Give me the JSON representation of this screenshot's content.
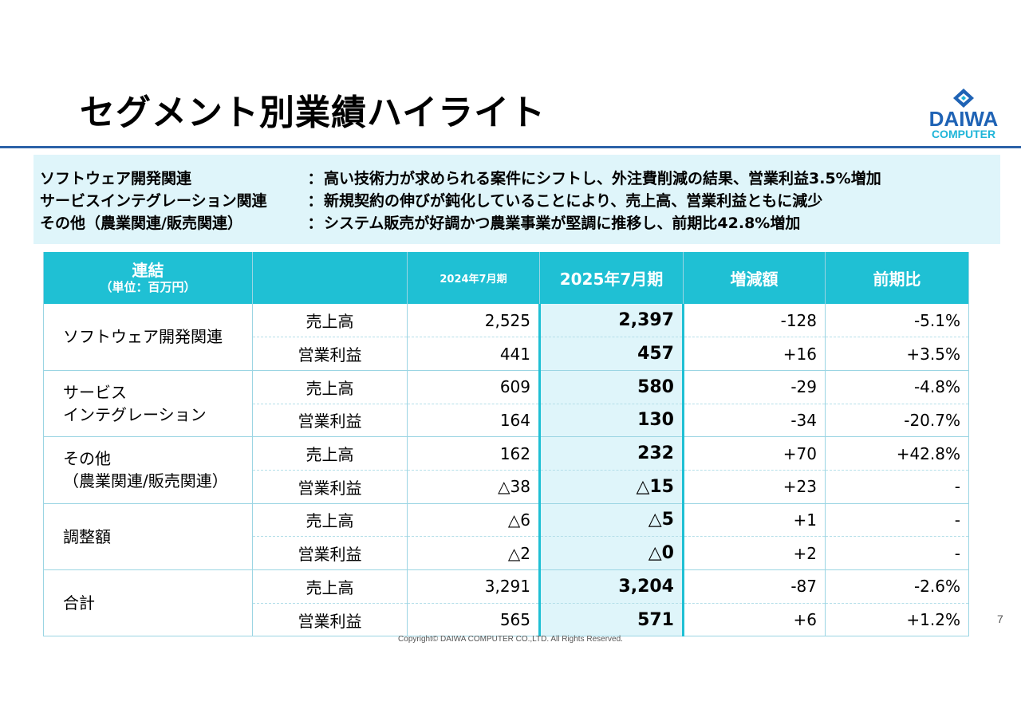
{
  "title": "セグメント別業績ハイライト",
  "logo": {
    "word": "DAIWA",
    "sub": "COMPUTER"
  },
  "summary": [
    {
      "label": "ソフトウェア開発関連",
      "colon": "：",
      "text": "高い技術力が求められる案件にシフトし、外注費削減の結果、営業利益3.5%増加"
    },
    {
      "label": "サービスインテグレーション関連",
      "colon": "：",
      "text": "新規契約の伸びが鈍化していることにより、売上高、営業利益ともに減少"
    },
    {
      "label": "その他（農業関連/販売関連）",
      "colon": "：",
      "text": "システム販売が好調かつ農業事業が堅調に推移し、前期比42.8%増加"
    }
  ],
  "table": {
    "header": {
      "consolidated": "連結",
      "unit": "（単位：百万円）",
      "blank": "",
      "prev": "2024年7月期",
      "cur": "2025年7月期",
      "diff": "増減額",
      "ratio": "前期比"
    },
    "segments": [
      {
        "name_line1": "ソフトウェア開発関連",
        "name_line2": "",
        "rows": [
          {
            "item": "売上高",
            "prev": "2,525",
            "cur": "2,397",
            "diff": "-128",
            "ratio": "-5.1%"
          },
          {
            "item": "営業利益",
            "prev": "441",
            "cur": "457",
            "diff": "+16",
            "ratio": "+3.5%"
          }
        ]
      },
      {
        "name_line1": "サービス",
        "name_line2": "インテグレーション",
        "rows": [
          {
            "item": "売上高",
            "prev": "609",
            "cur": "580",
            "diff": "-29",
            "ratio": "-4.8%"
          },
          {
            "item": "営業利益",
            "prev": "164",
            "cur": "130",
            "diff": "-34",
            "ratio": "-20.7%"
          }
        ]
      },
      {
        "name_line1": "その他",
        "name_line2": "（農業関連/販売関連）",
        "rows": [
          {
            "item": "売上高",
            "prev": "162",
            "cur": "232",
            "diff": "+70",
            "ratio": "+42.8%"
          },
          {
            "item": "営業利益",
            "prev": "△38",
            "cur": "△15",
            "diff": "+23",
            "ratio": "-"
          }
        ]
      },
      {
        "name_line1": "調整額",
        "name_line2": "",
        "rows": [
          {
            "item": "売上高",
            "prev": "△6",
            "cur": "△5",
            "diff": "+1",
            "ratio": "-"
          },
          {
            "item": "営業利益",
            "prev": "△2",
            "cur": "△0",
            "diff": "+2",
            "ratio": "-"
          }
        ]
      },
      {
        "name_line1": "合計",
        "name_line2": "",
        "rows": [
          {
            "item": "売上高",
            "prev": "3,291",
            "cur": "3,204",
            "diff": "-87",
            "ratio": "-2.6%"
          },
          {
            "item": "営業利益",
            "prev": "565",
            "cur": "571",
            "diff": "+6",
            "ratio": "+1.2%"
          }
        ]
      }
    ]
  },
  "footer": {
    "copyright": "Copyright© DAIWA COMPUTER CO.,LTD. All Rights Reserved.",
    "page": "7"
  },
  "colors": {
    "accent": "#1fc0d4",
    "rule": "#2c62a8",
    "highlight_bg": "#dff5fa",
    "logo_blue": "#1f63b5"
  }
}
